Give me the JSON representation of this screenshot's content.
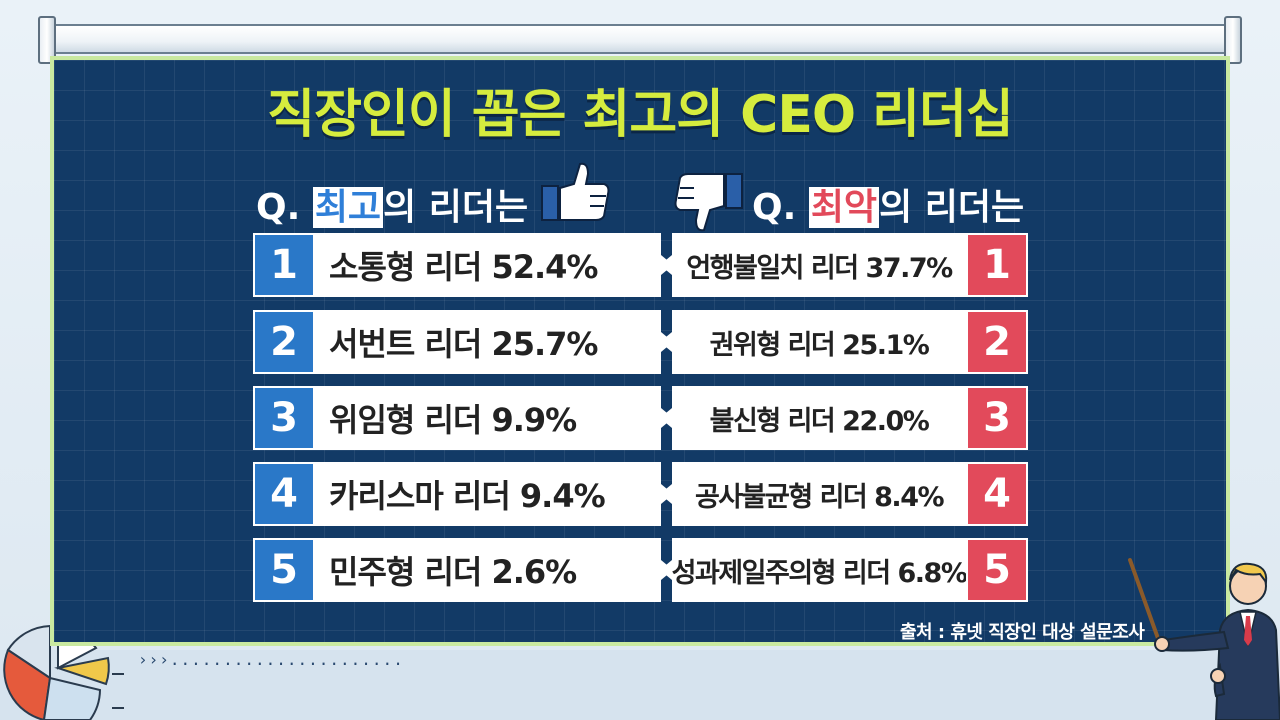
{
  "title": "직장인이 꼽은 최고의 CEO 리더십",
  "best": {
    "q_prefix": "Q. ",
    "q_highlight": "최고",
    "q_suffix": "의 리더는",
    "icon": "thumbs-up-icon",
    "items": [
      {
        "rank": "1",
        "label": "소통형 리더 52.4%"
      },
      {
        "rank": "2",
        "label": "서번트 리더 25.7%"
      },
      {
        "rank": "3",
        "label": "위임형 리더 9.9%"
      },
      {
        "rank": "4",
        "label": "카리스마 리더 9.4%"
      },
      {
        "rank": "5",
        "label": "민주형 리더 2.6%"
      }
    ]
  },
  "worst": {
    "q_prefix": "Q. ",
    "q_highlight": "최악",
    "q_suffix": "의 리더는",
    "icon": "thumbs-down-icon",
    "items": [
      {
        "rank": "1",
        "label": "언행불일치 리더 37.7%"
      },
      {
        "rank": "2",
        "label": "권위형 리더 25.1%"
      },
      {
        "rank": "3",
        "label": "불신형 리더 22.0%"
      },
      {
        "rank": "4",
        "label": "공사불균형 리더 8.4%"
      },
      {
        "rank": "5",
        "label": "성과제일주의형 리더 6.8%"
      }
    ]
  },
  "source": "출처 : 휴넷 직장인 대상 설문조사",
  "colors": {
    "board": "#123a66",
    "title": "#d6ec3e",
    "best_accent": "#2a78c8",
    "worst_accent": "#e24a5b"
  }
}
